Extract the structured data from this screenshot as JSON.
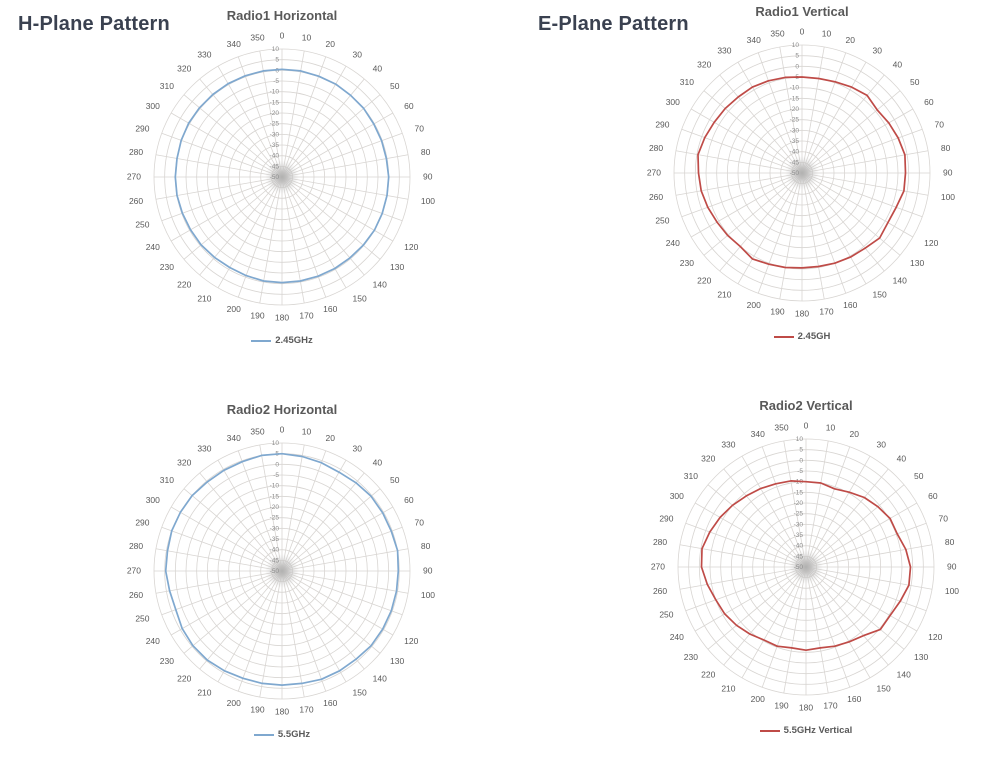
{
  "headings": {
    "h_plane": "H-Plane Pattern",
    "e_plane": "E-Plane Pattern"
  },
  "style": {
    "grid_color": "#d8d5d2",
    "angle_label_color": "#595959",
    "radial_label_color": "#8c8c8c",
    "heading_color": "#3a4150",
    "title_color": "#595959",
    "blue_series": "#7fa8cf",
    "red_series": "#bf4b47"
  },
  "chart_data": [
    {
      "type": "line",
      "subtype": "polar-radar",
      "title": "Radio1 Horizontal",
      "legend": "2.45GHz",
      "color": "#7fa8cf",
      "radial_axis": {
        "min": -50,
        "max": 10,
        "step": 5,
        "labels": [
          "10",
          "5",
          "0",
          "-5",
          "-10",
          "-15",
          "-20",
          "-25",
          "-30",
          "-35",
          "-40",
          "-45",
          "-50"
        ]
      },
      "angle_step_deg": 10,
      "angle_labels": [
        0,
        10,
        20,
        30,
        40,
        50,
        60,
        70,
        80,
        90,
        100,
        120,
        130,
        140,
        150,
        160,
        170,
        180,
        190,
        200,
        210,
        220,
        230,
        240,
        250,
        260,
        270,
        280,
        290,
        300,
        310,
        320,
        330,
        340,
        350
      ],
      "angles_deg": [
        0,
        10,
        20,
        30,
        40,
        50,
        60,
        70,
        80,
        90,
        100,
        110,
        120,
        130,
        140,
        150,
        160,
        170,
        180,
        190,
        200,
        210,
        220,
        230,
        240,
        250,
        260,
        270,
        280,
        290,
        300,
        310,
        320,
        330,
        340,
        350
      ],
      "values_db": [
        0.5,
        0.5,
        0.3,
        0.3,
        0,
        0,
        -0.3,
        -0.3,
        -0.3,
        0,
        0,
        0,
        0,
        -0.3,
        -0.5,
        -0.5,
        -0.5,
        -0.5,
        -0.5,
        -0.5,
        -0.8,
        -1,
        -0.8,
        -0.5,
        -0.5,
        -0.3,
        0,
        0,
        0,
        0.3,
        0.5,
        0.5,
        0.5,
        0.5,
        0.5,
        0.5
      ]
    },
    {
      "type": "line",
      "subtype": "polar-radar",
      "title": "Radio1 Vertical",
      "legend": "2.45GH",
      "color": "#bf4b47",
      "radial_axis": {
        "min": -50,
        "max": 10,
        "step": 5,
        "labels": [
          "10",
          "5",
          "0",
          "-5",
          "-10",
          "-15",
          "-20",
          "-25",
          "-30",
          "-35",
          "-40",
          "-45",
          "-50"
        ]
      },
      "angle_step_deg": 10,
      "angle_labels": [
        0,
        10,
        20,
        30,
        40,
        50,
        60,
        70,
        80,
        90,
        100,
        120,
        130,
        140,
        150,
        160,
        170,
        180,
        190,
        200,
        210,
        220,
        230,
        240,
        250,
        260,
        270,
        280,
        290,
        300,
        310,
        320,
        330,
        340,
        350
      ],
      "angles_deg": [
        0,
        10,
        20,
        30,
        40,
        50,
        60,
        70,
        80,
        90,
        100,
        110,
        120,
        130,
        140,
        150,
        160,
        170,
        180,
        190,
        200,
        210,
        220,
        230,
        240,
        250,
        260,
        270,
        280,
        290,
        300,
        310,
        320,
        330,
        340,
        350
      ],
      "values_db": [
        -5,
        -5,
        -4.5,
        -3.5,
        -2.5,
        -4,
        -3,
        -2,
        -1,
        -1.5,
        -1.5,
        -3,
        -3.5,
        -2.5,
        -4,
        -4.5,
        -5,
        -5.5,
        -5.5,
        -5,
        -4.5,
        -3.5,
        -5,
        -4.5,
        -4,
        -3,
        -2,
        -1.5,
        -0.5,
        -1.5,
        -2.5,
        -3,
        -3.5,
        -3.5,
        -4,
        -4.5
      ]
    },
    {
      "type": "line",
      "subtype": "polar-radar",
      "title": "Radio2 Horizontal",
      "legend": "5.5GHz",
      "color": "#7fa8cf",
      "radial_axis": {
        "min": -50,
        "max": 10,
        "step": 5,
        "labels": [
          "10",
          "5",
          "0",
          "-5",
          "-10",
          "-15",
          "-20",
          "-25",
          "-30",
          "-35",
          "-40",
          "-45",
          "-50"
        ]
      },
      "angle_step_deg": 10,
      "angle_labels": [
        0,
        10,
        20,
        30,
        40,
        50,
        60,
        70,
        80,
        90,
        100,
        120,
        130,
        140,
        150,
        160,
        170,
        180,
        190,
        200,
        210,
        220,
        230,
        240,
        250,
        260,
        270,
        280,
        290,
        300,
        310,
        320,
        330,
        340,
        350
      ],
      "angles_deg": [
        0,
        10,
        20,
        30,
        40,
        50,
        60,
        70,
        80,
        90,
        100,
        110,
        120,
        130,
        140,
        150,
        160,
        170,
        180,
        190,
        200,
        210,
        220,
        230,
        240,
        250,
        260,
        270,
        280,
        290,
        300,
        310,
        320,
        330,
        340,
        350
      ],
      "values_db": [
        5,
        4.5,
        4,
        3.5,
        4,
        4.5,
        4.5,
        4.5,
        5,
        4.5,
        4.5,
        4.5,
        4.5,
        4.5,
        4,
        4,
        4,
        3.5,
        3.5,
        3.5,
        3.5,
        4,
        4.5,
        4.5,
        4,
        3,
        3.5,
        4.5,
        4.5,
        5,
        5,
        5,
        4.5,
        4.5,
        4.5,
        5
      ]
    },
    {
      "type": "line",
      "subtype": "polar-radar",
      "title": "Radio2 Vertical",
      "legend": "5.5GHz Vertical",
      "color": "#bf4b47",
      "radial_axis": {
        "min": -50,
        "max": 10,
        "step": 5,
        "labels": [
          "10",
          "5",
          "0",
          "-5",
          "-10",
          "-15",
          "-20",
          "-25",
          "-30",
          "-35",
          "-40",
          "-45",
          "-50"
        ]
      },
      "angle_step_deg": 10,
      "angle_labels": [
        0,
        10,
        20,
        30,
        40,
        50,
        60,
        70,
        80,
        90,
        100,
        120,
        130,
        140,
        150,
        160,
        170,
        180,
        190,
        200,
        210,
        220,
        230,
        240,
        250,
        260,
        270,
        280,
        290,
        300,
        310,
        320,
        330,
        340,
        350
      ],
      "angles_deg": [
        0,
        10,
        20,
        30,
        40,
        50,
        60,
        70,
        80,
        90,
        100,
        110,
        120,
        130,
        140,
        150,
        160,
        170,
        180,
        190,
        200,
        210,
        220,
        230,
        240,
        250,
        260,
        270,
        280,
        290,
        300,
        310,
        320,
        330,
        340,
        350
      ],
      "values_db": [
        -10,
        -10,
        -11,
        -9.5,
        -7.5,
        -6,
        -4.5,
        -4.5,
        -2.5,
        -1,
        -1,
        -3,
        -4.5,
        -4.5,
        -8,
        -9.5,
        -10.5,
        -11.5,
        -11,
        -11.5,
        -10.5,
        -10.5,
        -9,
        -7.5,
        -6,
        -5,
        -3,
        -1,
        -0.5,
        -2,
        -3.5,
        -5,
        -6.5,
        -7.5,
        -8.5,
        -9
      ]
    }
  ]
}
